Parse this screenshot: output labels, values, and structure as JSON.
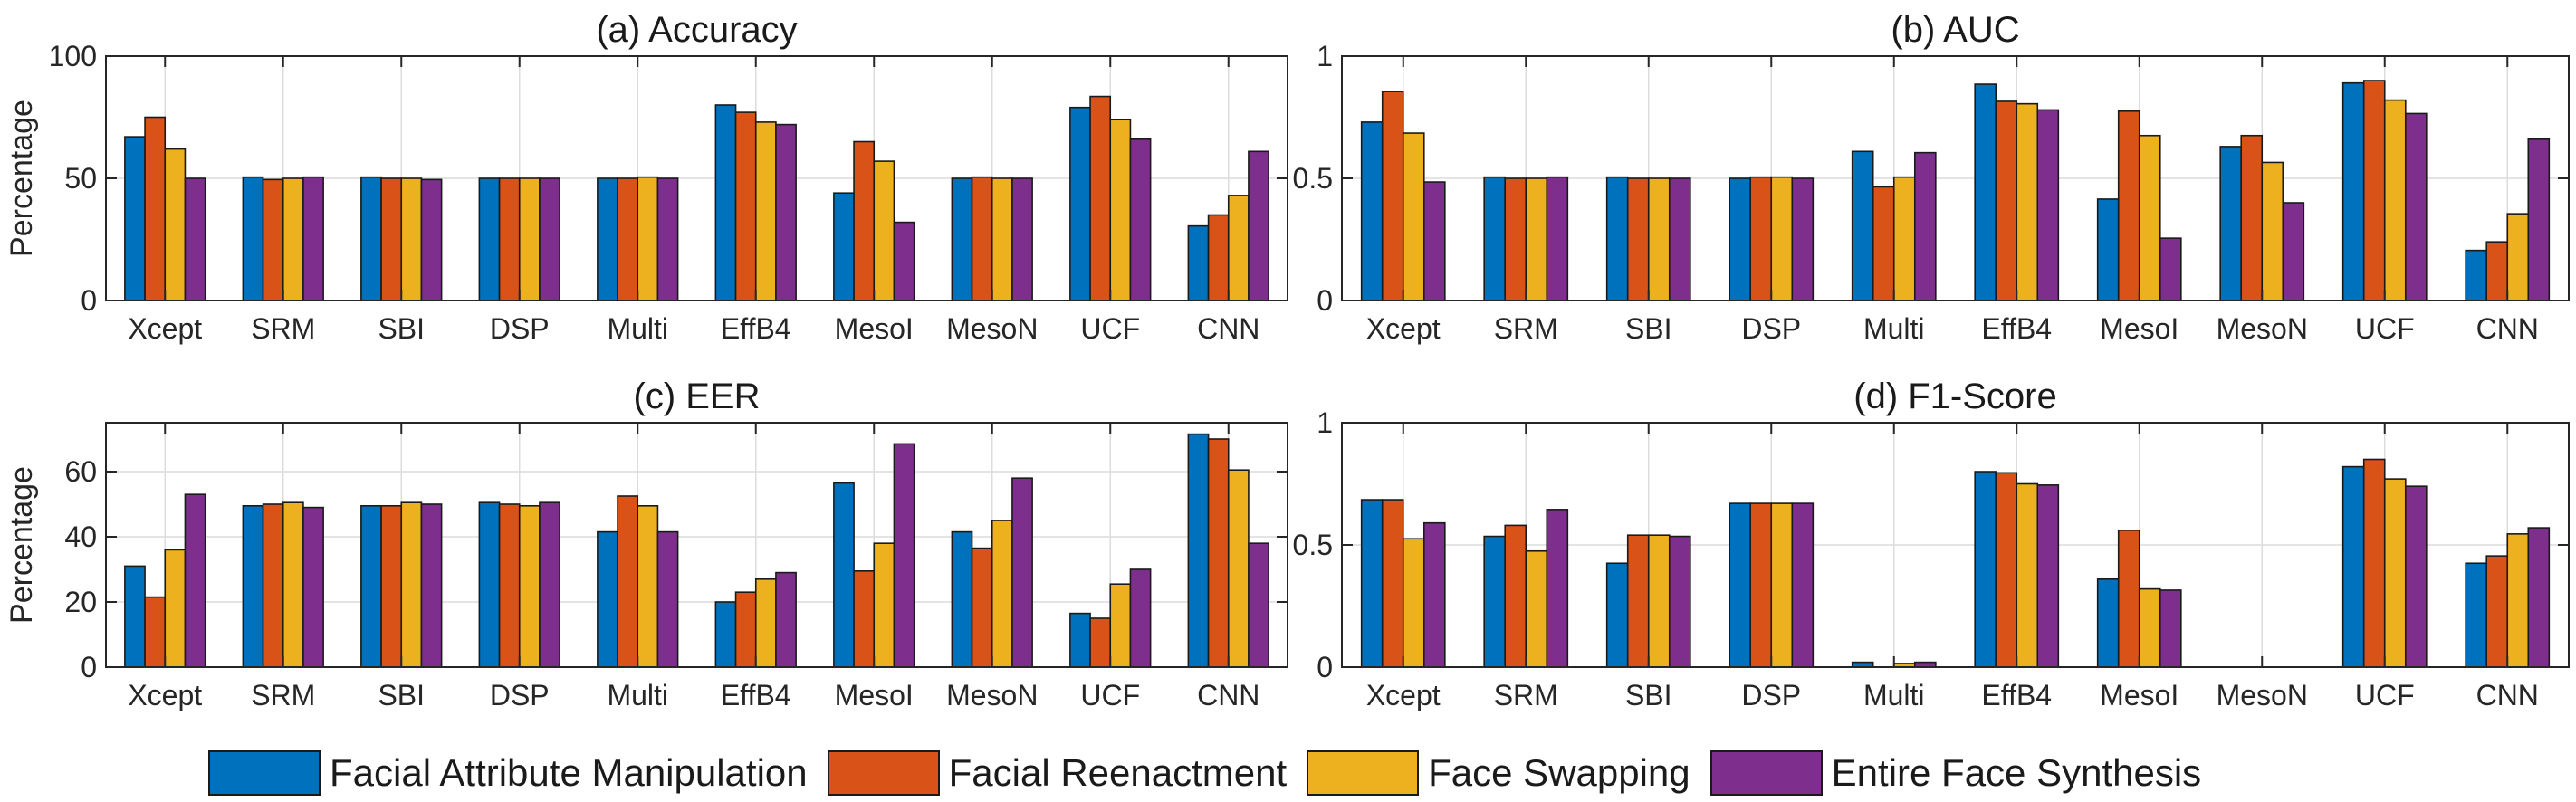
{
  "chart_data": [
    {
      "type": "bar",
      "title": "(a) Accuracy",
      "ylabel": "Percentage",
      "ylim": [
        0,
        100
      ],
      "yticks": [
        0,
        50,
        100
      ],
      "ytick_labels": [
        "0",
        "50",
        "100"
      ],
      "grid": true,
      "categories": [
        "Xcept",
        "SRM",
        "SBI",
        "DSP",
        "Multi",
        "EffB4",
        "MesoI",
        "MesoN",
        "UCF",
        "CNN"
      ],
      "series": [
        {
          "name": "Facial Attribute Manipulation",
          "values": [
            67,
            50.5,
            50.5,
            50,
            50,
            80,
            44,
            50,
            79,
            30.5
          ]
        },
        {
          "name": "Facial Reenactment",
          "values": [
            75,
            49.5,
            50,
            50,
            50,
            77,
            65,
            50.5,
            83.5,
            35
          ]
        },
        {
          "name": "Face Swapping",
          "values": [
            62,
            50,
            50,
            50,
            50.5,
            73,
            57,
            50,
            74,
            43
          ]
        },
        {
          "name": "Entire Face Synthesis",
          "values": [
            50,
            50.5,
            49.5,
            50,
            50,
            72,
            32,
            50,
            66,
            61
          ]
        }
      ]
    },
    {
      "type": "bar",
      "title": "(b) AUC",
      "ylabel": "",
      "ylim": [
        0,
        1
      ],
      "yticks": [
        0,
        0.5,
        1
      ],
      "ytick_labels": [
        "0",
        "0.5",
        "1"
      ],
      "grid": true,
      "categories": [
        "Xcept",
        "SRM",
        "SBI",
        "DSP",
        "Multi",
        "EffB4",
        "MesoI",
        "MesoN",
        "UCF",
        "CNN"
      ],
      "series": [
        {
          "name": "Facial Attribute Manipulation",
          "values": [
            0.73,
            0.505,
            0.505,
            0.5,
            0.61,
            0.885,
            0.415,
            0.63,
            0.89,
            0.205
          ]
        },
        {
          "name": "Facial Reenactment",
          "values": [
            0.855,
            0.5,
            0.5,
            0.505,
            0.465,
            0.815,
            0.775,
            0.675,
            0.9,
            0.24
          ]
        },
        {
          "name": "Face Swapping",
          "values": [
            0.685,
            0.5,
            0.5,
            0.505,
            0.505,
            0.805,
            0.675,
            0.565,
            0.82,
            0.355
          ]
        },
        {
          "name": "Entire Face Synthesis",
          "values": [
            0.485,
            0.505,
            0.5,
            0.5,
            0.605,
            0.78,
            0.255,
            0.4,
            0.765,
            0.66
          ]
        }
      ]
    },
    {
      "type": "bar",
      "title": "(c) EER",
      "ylabel": "Percentage",
      "ylim": [
        0,
        75
      ],
      "yticks": [
        0,
        20,
        40,
        60
      ],
      "ytick_labels": [
        "0",
        "20",
        "40",
        "60"
      ],
      "grid": true,
      "categories": [
        "Xcept",
        "SRM",
        "SBI",
        "DSP",
        "Multi",
        "EffB4",
        "MesoI",
        "MesoN",
        "UCF",
        "CNN"
      ],
      "series": [
        {
          "name": "Facial Attribute Manipulation",
          "values": [
            31,
            49.5,
            49.5,
            50.5,
            41.5,
            20,
            56.5,
            41.5,
            16.5,
            71.5
          ]
        },
        {
          "name": "Facial Reenactment",
          "values": [
            21.5,
            50,
            49.5,
            50,
            52.5,
            23,
            29.5,
            36.5,
            15,
            70
          ]
        },
        {
          "name": "Face Swapping",
          "values": [
            36,
            50.5,
            50.5,
            49.5,
            49.5,
            27,
            38,
            45,
            25.5,
            60.5
          ]
        },
        {
          "name": "Entire Face Synthesis",
          "values": [
            53,
            49,
            50,
            50.5,
            41.5,
            29,
            68.5,
            58,
            30,
            38
          ]
        }
      ]
    },
    {
      "type": "bar",
      "title": "(d) F1-Score",
      "ylabel": "",
      "ylim": [
        0,
        1
      ],
      "yticks": [
        0,
        0.5,
        1
      ],
      "ytick_labels": [
        "0",
        "0.5",
        "1"
      ],
      "grid": true,
      "categories": [
        "Xcept",
        "SRM",
        "SBI",
        "DSP",
        "Multi",
        "EffB4",
        "MesoI",
        "MesoN",
        "UCF",
        "CNN"
      ],
      "series": [
        {
          "name": "Facial Attribute Manipulation",
          "values": [
            0.685,
            0.535,
            0.425,
            0.67,
            0.02,
            0.8,
            0.36,
            0,
            0.82,
            0.425
          ]
        },
        {
          "name": "Facial Reenactment",
          "values": [
            0.685,
            0.58,
            0.54,
            0.67,
            0,
            0.795,
            0.56,
            0,
            0.85,
            0.455
          ]
        },
        {
          "name": "Face Swapping",
          "values": [
            0.525,
            0.475,
            0.54,
            0.67,
            0.015,
            0.75,
            0.32,
            0,
            0.77,
            0.545
          ]
        },
        {
          "name": "Entire Face Synthesis",
          "values": [
            0.59,
            0.645,
            0.535,
            0.67,
            0.02,
            0.745,
            0.315,
            0,
            0.74,
            0.57
          ]
        }
      ]
    }
  ],
  "legend": [
    {
      "label": "Facial Attribute Manipulation",
      "color": "#0072BD"
    },
    {
      "label": "Facial Reenactment",
      "color": "#D95319"
    },
    {
      "label": "Face Swapping",
      "color": "#EDB120"
    },
    {
      "label": "Entire Face Synthesis",
      "color": "#7E2F8E"
    }
  ],
  "colors": {
    "grid": "#dcdcdc",
    "axis": "#262626",
    "bar_edge": "#1a1a1a"
  }
}
